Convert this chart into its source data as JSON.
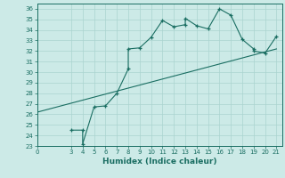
{
  "title": "",
  "xlabel": "Humidex (Indice chaleur)",
  "bg_color": "#cceae7",
  "grid_color": "#aad4d0",
  "line_color": "#1a6e62",
  "xlim": [
    0,
    21.5
  ],
  "ylim": [
    23,
    36.5
  ],
  "xticks": [
    0,
    3,
    4,
    5,
    6,
    7,
    8,
    9,
    10,
    11,
    12,
    13,
    14,
    15,
    16,
    17,
    18,
    19,
    20,
    21
  ],
  "yticks": [
    23,
    24,
    25,
    26,
    27,
    28,
    29,
    30,
    31,
    32,
    33,
    34,
    35,
    36
  ],
  "curve_x": [
    3,
    4,
    4,
    5,
    6,
    7,
    8,
    8,
    9,
    10,
    11,
    12,
    13,
    13,
    14,
    15,
    16,
    17,
    18,
    19,
    19,
    20,
    21
  ],
  "curve_y": [
    24.5,
    24.5,
    23.2,
    26.7,
    26.8,
    28.0,
    30.3,
    32.2,
    32.3,
    33.3,
    34.9,
    34.3,
    34.5,
    35.1,
    34.4,
    34.1,
    36.0,
    35.4,
    33.1,
    32.2,
    32.0,
    31.8,
    33.4
  ],
  "line_x": [
    0,
    21
  ],
  "line_y": [
    26.2,
    32.2
  ],
  "xlabel_fontsize": 6.5,
  "tick_fontsize": 5.0
}
